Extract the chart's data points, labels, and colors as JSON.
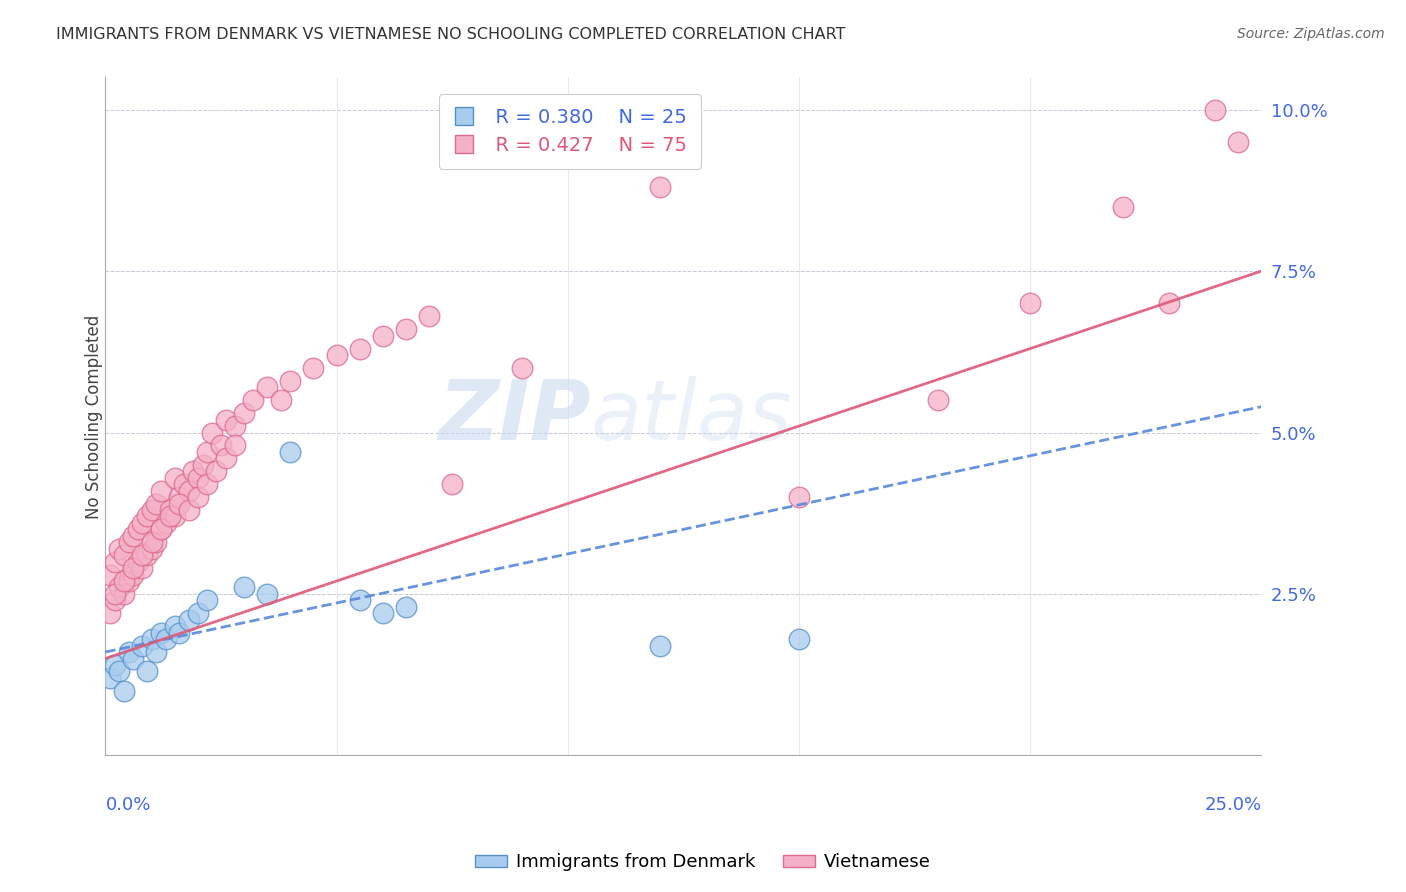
{
  "title": "IMMIGRANTS FROM DENMARK VS VIETNAMESE NO SCHOOLING COMPLETED CORRELATION CHART",
  "source": "Source: ZipAtlas.com",
  "ylabel": "No Schooling Completed",
  "yticks": [
    0.0,
    0.025,
    0.05,
    0.075,
    0.1
  ],
  "ytick_labels": [
    "",
    "2.5%",
    "5.0%",
    "7.5%",
    "10.0%"
  ],
  "xlim": [
    0.0,
    0.25
  ],
  "ylim": [
    0.0,
    0.105
  ],
  "denmark_color": "#a8ccee",
  "vietnamese_color": "#f4b0c8",
  "denmark_edge_color": "#5590cc",
  "vietnamese_edge_color": "#e06888",
  "denmark_line_color": "#5588dd",
  "vietnamese_line_color": "#e05878",
  "legend_r_denmark": "R = 0.380",
  "legend_n_denmark": "N = 25",
  "legend_r_vietnamese": "R = 0.427",
  "legend_n_vietnamese": "N = 75",
  "watermark_zip": "ZIP",
  "watermark_atlas": "atlas",
  "denmark_scatter_x": [
    0.001,
    0.002,
    0.003,
    0.004,
    0.005,
    0.006,
    0.008,
    0.009,
    0.01,
    0.011,
    0.012,
    0.013,
    0.015,
    0.016,
    0.018,
    0.02,
    0.022,
    0.03,
    0.035,
    0.04,
    0.055,
    0.06,
    0.065,
    0.12,
    0.15
  ],
  "denmark_scatter_y": [
    0.012,
    0.014,
    0.013,
    0.01,
    0.016,
    0.015,
    0.017,
    0.013,
    0.018,
    0.016,
    0.019,
    0.018,
    0.02,
    0.019,
    0.021,
    0.022,
    0.024,
    0.026,
    0.025,
    0.047,
    0.024,
    0.022,
    0.023,
    0.017,
    0.018
  ],
  "vietnamese_scatter_x": [
    0.001,
    0.001,
    0.002,
    0.002,
    0.003,
    0.003,
    0.004,
    0.004,
    0.005,
    0.005,
    0.006,
    0.006,
    0.007,
    0.007,
    0.008,
    0.008,
    0.009,
    0.009,
    0.01,
    0.01,
    0.011,
    0.011,
    0.012,
    0.012,
    0.013,
    0.014,
    0.015,
    0.015,
    0.016,
    0.017,
    0.018,
    0.019,
    0.02,
    0.021,
    0.022,
    0.023,
    0.025,
    0.026,
    0.028,
    0.03,
    0.032,
    0.035,
    0.038,
    0.04,
    0.045,
    0.05,
    0.055,
    0.06,
    0.065,
    0.07,
    0.002,
    0.004,
    0.006,
    0.008,
    0.01,
    0.012,
    0.014,
    0.016,
    0.018,
    0.02,
    0.022,
    0.024,
    0.026,
    0.028,
    0.075,
    0.09,
    0.1,
    0.12,
    0.15,
    0.18,
    0.2,
    0.22,
    0.23,
    0.24,
    0.245
  ],
  "vietnamese_scatter_y": [
    0.022,
    0.028,
    0.024,
    0.03,
    0.026,
    0.032,
    0.025,
    0.031,
    0.027,
    0.033,
    0.028,
    0.034,
    0.03,
    0.035,
    0.029,
    0.036,
    0.031,
    0.037,
    0.032,
    0.038,
    0.033,
    0.039,
    0.035,
    0.041,
    0.036,
    0.038,
    0.037,
    0.043,
    0.04,
    0.042,
    0.041,
    0.044,
    0.043,
    0.045,
    0.047,
    0.05,
    0.048,
    0.052,
    0.051,
    0.053,
    0.055,
    0.057,
    0.055,
    0.058,
    0.06,
    0.062,
    0.063,
    0.065,
    0.066,
    0.068,
    0.025,
    0.027,
    0.029,
    0.031,
    0.033,
    0.035,
    0.037,
    0.039,
    0.038,
    0.04,
    0.042,
    0.044,
    0.046,
    0.048,
    0.042,
    0.06,
    0.097,
    0.088,
    0.04,
    0.055,
    0.07,
    0.085,
    0.07,
    0.1,
    0.095
  ],
  "dk_line_x0": 0.0,
  "dk_line_y0": 0.016,
  "dk_line_x1": 0.25,
  "dk_line_y1": 0.054,
  "vn_line_x0": 0.0,
  "vn_line_y0": 0.015,
  "vn_line_x1": 0.25,
  "vn_line_y1": 0.075
}
